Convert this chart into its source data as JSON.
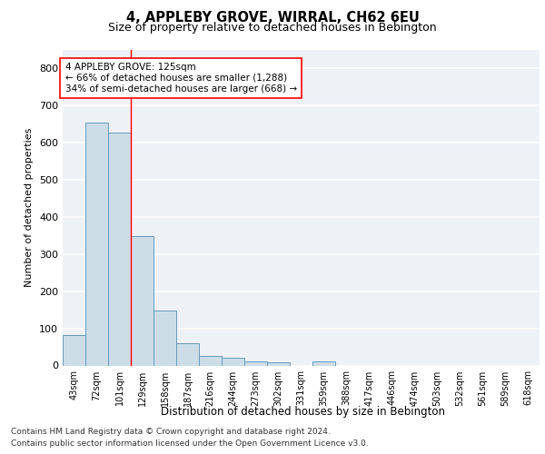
{
  "title1": "4, APPLEBY GROVE, WIRRAL, CH62 6EU",
  "title2": "Size of property relative to detached houses in Bebington",
  "xlabel": "Distribution of detached houses by size in Bebington",
  "ylabel": "Number of detached properties",
  "categories": [
    "43sqm",
    "72sqm",
    "101sqm",
    "129sqm",
    "158sqm",
    "187sqm",
    "216sqm",
    "244sqm",
    "273sqm",
    "302sqm",
    "331sqm",
    "359sqm",
    "388sqm",
    "417sqm",
    "446sqm",
    "474sqm",
    "503sqm",
    "532sqm",
    "561sqm",
    "589sqm",
    "618sqm"
  ],
  "values": [
    82,
    655,
    628,
    348,
    148,
    60,
    25,
    20,
    12,
    8,
    0,
    10,
    0,
    0,
    0,
    0,
    0,
    0,
    0,
    0,
    0
  ],
  "bar_color": "#ccdde8",
  "bar_edge_color": "#6699bb",
  "red_line_x": 2.5,
  "annotation_text": "4 APPLEBY GROVE: 125sqm\n← 66% of detached houses are smaller (1,288)\n34% of semi-detached houses are larger (668) →",
  "ylim": [
    0,
    850
  ],
  "yticks": [
    0,
    100,
    200,
    300,
    400,
    500,
    600,
    700,
    800
  ],
  "background_color": "#eef2f7",
  "grid_color": "#ffffff",
  "footnote1": "Contains HM Land Registry data © Crown copyright and database right 2024.",
  "footnote2": "Contains public sector information licensed under the Open Government Licence v3.0."
}
